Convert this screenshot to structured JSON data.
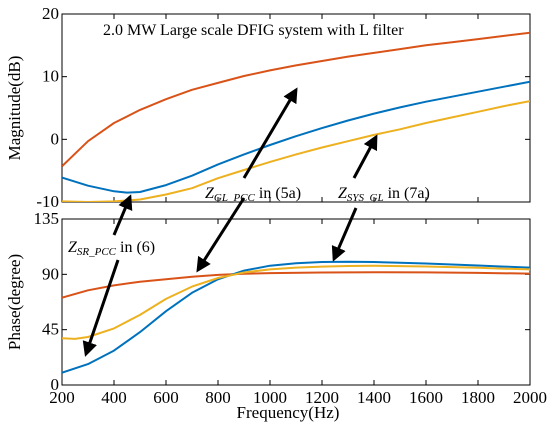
{
  "chart_data": [
    {
      "type": "line",
      "title": "2.0 MW Large scale DFIG system with L filter",
      "ylabel": "Magnitude(dB)",
      "xlim": [
        200,
        2000
      ],
      "ylim": [
        -10,
        20
      ],
      "yticks": [
        -10,
        0,
        10,
        20
      ],
      "ytick_labels": [
        "-10",
        "0",
        "10",
        "20"
      ],
      "grid": false,
      "colors": {
        "orange": "#D95319",
        "blue": "#0072BD",
        "yellow": "#EDB120"
      },
      "series": [
        {
          "color": "orange",
          "x": [
            200,
            300,
            400,
            500,
            600,
            700,
            800,
            900,
            1000,
            1100,
            1200,
            1300,
            1400,
            1500,
            1600,
            1700,
            1800,
            1900,
            2000
          ],
          "y": [
            -4.3,
            -0.3,
            2.6,
            4.7,
            6.4,
            7.9,
            9.0,
            10.1,
            11.0,
            11.8,
            12.5,
            13.2,
            13.8,
            14.4,
            15.0,
            15.5,
            16.0,
            16.5,
            17.0
          ]
        },
        {
          "color": "blue",
          "x": [
            200,
            300,
            400,
            450,
            500,
            600,
            700,
            800,
            900,
            1000,
            1100,
            1200,
            1300,
            1400,
            1500,
            1600,
            1700,
            1800,
            1900,
            2000
          ],
          "y": [
            -6.1,
            -7.4,
            -8.3,
            -8.5,
            -8.4,
            -7.3,
            -5.8,
            -4.0,
            -2.4,
            -0.9,
            0.5,
            1.8,
            3.0,
            4.1,
            5.1,
            6.0,
            6.8,
            7.6,
            8.4,
            9.2
          ]
        },
        {
          "color": "yellow",
          "x": [
            200,
            300,
            400,
            500,
            600,
            700,
            800,
            900,
            1000,
            1100,
            1200,
            1300,
            1400,
            1500,
            1600,
            1700,
            1800,
            1900,
            2000
          ],
          "y": [
            -9.9,
            -10.0,
            -9.9,
            -9.6,
            -8.8,
            -7.8,
            -6.2,
            -4.9,
            -3.6,
            -2.4,
            -1.3,
            -0.3,
            0.7,
            1.6,
            2.6,
            3.5,
            4.4,
            5.3,
            6.1
          ]
        }
      ]
    },
    {
      "type": "line",
      "xlabel": "Frequency(Hz)",
      "ylabel": "Phase(degree)",
      "xlim": [
        200,
        2000
      ],
      "ylim": [
        0,
        135
      ],
      "xticks": [
        200,
        400,
        600,
        800,
        1000,
        1200,
        1400,
        1600,
        1800,
        2000
      ],
      "xtick_labels": [
        "200",
        "400",
        "600",
        "800",
        "1000",
        "1200",
        "1400",
        "1600",
        "1800",
        "2000"
      ],
      "yticks": [
        0,
        45,
        90,
        135
      ],
      "ytick_labels": [
        "0",
        "45",
        "90",
        "135"
      ],
      "grid": false,
      "colors": {
        "orange": "#D95319",
        "blue": "#0072BD",
        "yellow": "#EDB120"
      },
      "series": [
        {
          "color": "orange",
          "x": [
            200,
            300,
            400,
            500,
            600,
            700,
            800,
            900,
            1000,
            1200,
            1400,
            1600,
            1800,
            2000
          ],
          "y": [
            71,
            77,
            81,
            84,
            86,
            88,
            89.5,
            90.4,
            91,
            91.5,
            91.7,
            91.6,
            91.2,
            90.6
          ]
        },
        {
          "color": "blue",
          "x": [
            200,
            300,
            400,
            500,
            600,
            700,
            800,
            900,
            1000,
            1100,
            1200,
            1300,
            1400,
            1500,
            1600,
            1700,
            1800,
            1900,
            2000
          ],
          "y": [
            10,
            17,
            28,
            43,
            60,
            75,
            86,
            93,
            97,
            99,
            100,
            100.3,
            100,
            99.5,
            98.8,
            98,
            97.2,
            96.3,
            95.5
          ]
        },
        {
          "color": "yellow",
          "x": [
            200,
            250,
            300,
            400,
            500,
            600,
            700,
            800,
            900,
            1000,
            1100,
            1200,
            1300,
            1400,
            1500,
            1600,
            1700,
            1800,
            1900,
            2000
          ],
          "y": [
            38,
            37.5,
            39,
            46,
            57,
            70,
            80,
            87,
            91.5,
            94,
            95.5,
            96.3,
            96.8,
            96.9,
            96.7,
            96.4,
            95.9,
            95.3,
            94.6,
            94
          ]
        }
      ]
    }
  ],
  "annotations": [
    {
      "id": "zgl",
      "symbol": "Z",
      "subscript": "GL_PCC",
      "suffix": " in (5a)"
    },
    {
      "id": "zsys",
      "symbol": "Z",
      "subscript": "SYS_GL",
      "suffix": " in (7a)"
    },
    {
      "id": "zsr",
      "symbol": "Z",
      "subscript": "SR_PCC",
      "suffix": " in (6)"
    }
  ]
}
